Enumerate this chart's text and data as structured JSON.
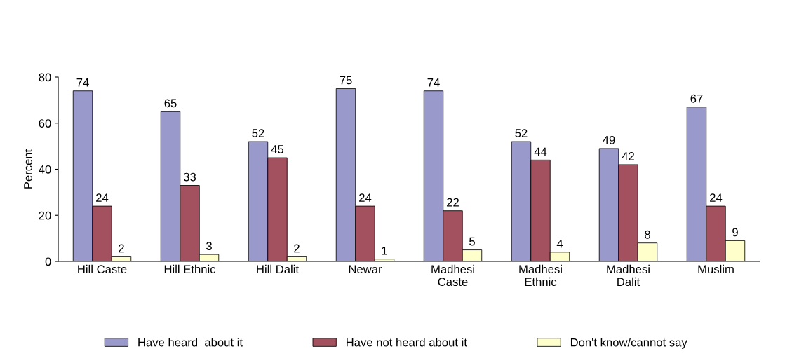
{
  "chart_data": {
    "type": "bar",
    "ylabel": "Percent",
    "categories": [
      "Hill Caste",
      "Hill Ethnic",
      "Hill Dalit",
      "Newar",
      "Madhesi\nCaste",
      "Madhesi\nEthnic",
      "Madhesi\nDalit",
      "Muslim"
    ],
    "series": [
      {
        "name": "Have heard  about it",
        "color": "#9999cc",
        "values": [
          74,
          65,
          52,
          75,
          74,
          52,
          49,
          67
        ]
      },
      {
        "name": "Have not heard about it",
        "color": "#a3505f",
        "values": [
          24,
          33,
          45,
          24,
          22,
          44,
          42,
          24
        ]
      },
      {
        "name": "Don't know/cannot say",
        "color": "#ffffcc",
        "values": [
          2,
          3,
          2,
          1,
          5,
          4,
          8,
          9
        ]
      }
    ],
    "ylim": [
      0,
      80
    ],
    "yticks": [
      0,
      20,
      40,
      60,
      80
    ],
    "grid": false,
    "legend": "bottom",
    "data_labels": true
  }
}
